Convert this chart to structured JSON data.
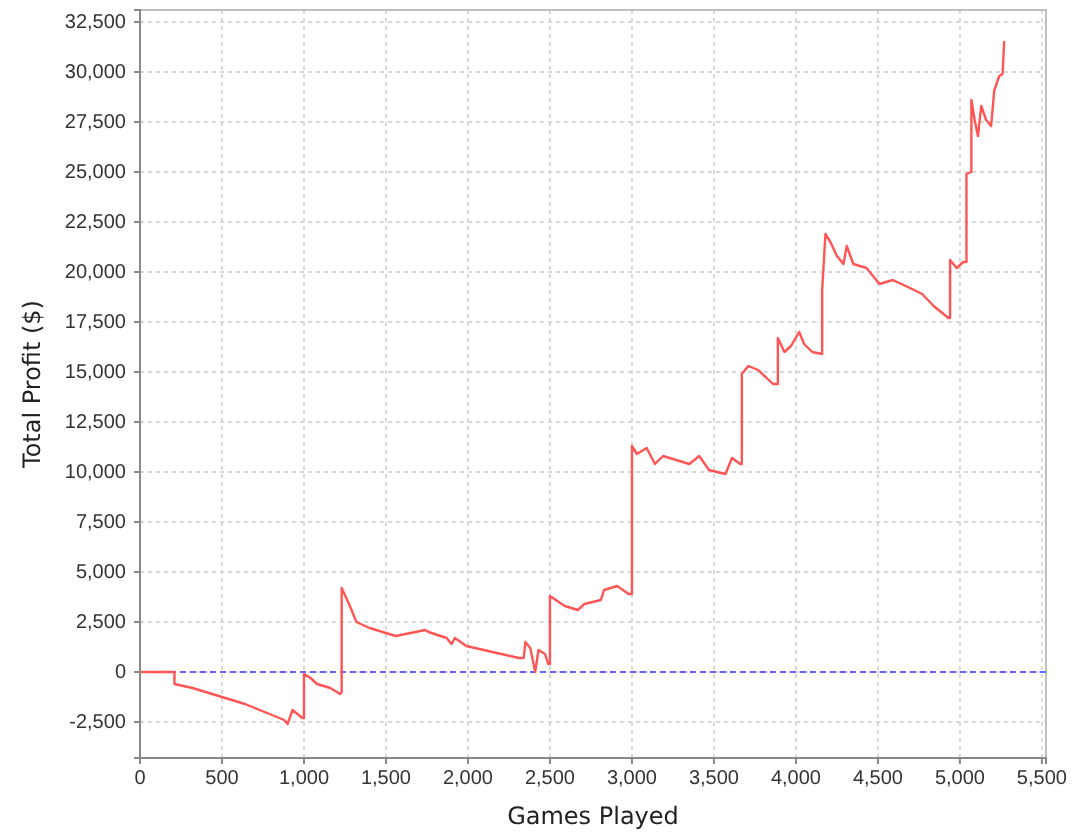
{
  "chart_data": {
    "type": "line",
    "xlabel": "Games Played",
    "ylabel": "Total Profit ($)",
    "x": [
      0,
      210,
      210,
      320,
      480,
      600,
      640,
      760,
      880,
      900,
      930,
      990,
      1000,
      1000,
      1040,
      1080,
      1160,
      1220,
      1230,
      1230,
      1280,
      1320,
      1400,
      1560,
      1740,
      1760,
      1870,
      1900,
      1920,
      1990,
      2150,
      2310,
      2340,
      2350,
      2380,
      2410,
      2430,
      2470,
      2490,
      2500,
      2500,
      2590,
      2670,
      2710,
      2810,
      2830,
      2910,
      2980,
      3000,
      3000,
      3030,
      3090,
      3140,
      3190,
      3350,
      3410,
      3470,
      3570,
      3610,
      3660,
      3670,
      3670,
      3710,
      3770,
      3860,
      3890,
      3890,
      3930,
      3970,
      4020,
      4050,
      4100,
      4160,
      4160,
      4180,
      4210,
      4250,
      4290,
      4310,
      4350,
      4430,
      4510,
      4590,
      4670,
      4770,
      4840,
      4930,
      4940,
      4940,
      4980,
      5020,
      5040,
      5040,
      5070,
      5070,
      5090,
      5110,
      5130,
      5160,
      5190,
      5210,
      5240,
      5260,
      5270
    ],
    "series": [
      {
        "color": "#ff5555",
        "values": [
          0,
          0,
          -600,
          -800,
          -1200,
          -1500,
          -1600,
          -2000,
          -2400,
          -2600,
          -1900,
          -2300,
          -2300,
          -100,
          -300,
          -600,
          -800,
          -1100,
          -1000,
          4200,
          3300,
          2500,
          2200,
          1800,
          2100,
          2000,
          1700,
          1400,
          1700,
          1300,
          1000,
          700,
          700,
          1500,
          1200,
          0,
          1100,
          900,
          400,
          400,
          3800,
          3300,
          3100,
          3400,
          3600,
          4100,
          4300,
          3900,
          3900,
          11300,
          10900,
          11200,
          10400,
          10800,
          10400,
          10800,
          10100,
          9900,
          10700,
          10400,
          10400,
          14900,
          15300,
          15100,
          14400,
          14400,
          16700,
          16000,
          16300,
          17000,
          16400,
          16000,
          15900,
          19100,
          21900,
          21500,
          20800,
          20400,
          21300,
          20400,
          20200,
          19400,
          19600,
          19300,
          18900,
          18300,
          17700,
          17700,
          20600,
          20200,
          20500,
          20500,
          24900,
          25000,
          28600,
          27600,
          26800,
          28300,
          27600,
          27300,
          29100,
          29800,
          29900,
          31500
        ]
      }
    ],
    "xlim": [
      0,
      5525
    ],
    "xticks": [
      0,
      500,
      {
        "value": 1000,
        "label": "1,000"
      },
      {
        "value": 1500,
        "label": "1,500"
      },
      {
        "value": 2000,
        "label": "2,000"
      },
      {
        "value": 2500,
        "label": "2,500"
      },
      {
        "value": 3000,
        "label": "3,000"
      },
      {
        "value": 3500,
        "label": "3,500"
      },
      {
        "value": 4000,
        "label": "4,000"
      },
      {
        "value": 4500,
        "label": "4,500"
      },
      {
        "value": 5000,
        "label": "5,000"
      },
      {
        "value": 5500,
        "label": "5,500"
      }
    ],
    "ylim": [
      -4300,
      33100
    ],
    "yticks": [
      {
        "value": -2500,
        "label": "-2,500"
      },
      0,
      {
        "value": 2500,
        "label": "2,500"
      },
      {
        "value": 5000,
        "label": "5,000"
      },
      {
        "value": 7500,
        "label": "7,500"
      },
      {
        "value": 10000,
        "label": "10,000"
      },
      {
        "value": 12500,
        "label": "12,500"
      },
      {
        "value": 15000,
        "label": "15,000"
      },
      {
        "value": 17500,
        "label": "17,500"
      },
      {
        "value": 20000,
        "label": "20,000"
      },
      {
        "value": 22500,
        "label": "22,500"
      },
      {
        "value": 25000,
        "label": "25,000"
      },
      {
        "value": 27500,
        "label": "27,500"
      },
      {
        "value": 30000,
        "label": "30,000"
      },
      {
        "value": 32500,
        "label": "32,500"
      }
    ],
    "grid": true,
    "ref_lines": [
      {
        "axis": "y",
        "value": 0,
        "color": "#6666ff",
        "line_style": "dashed"
      }
    ]
  }
}
